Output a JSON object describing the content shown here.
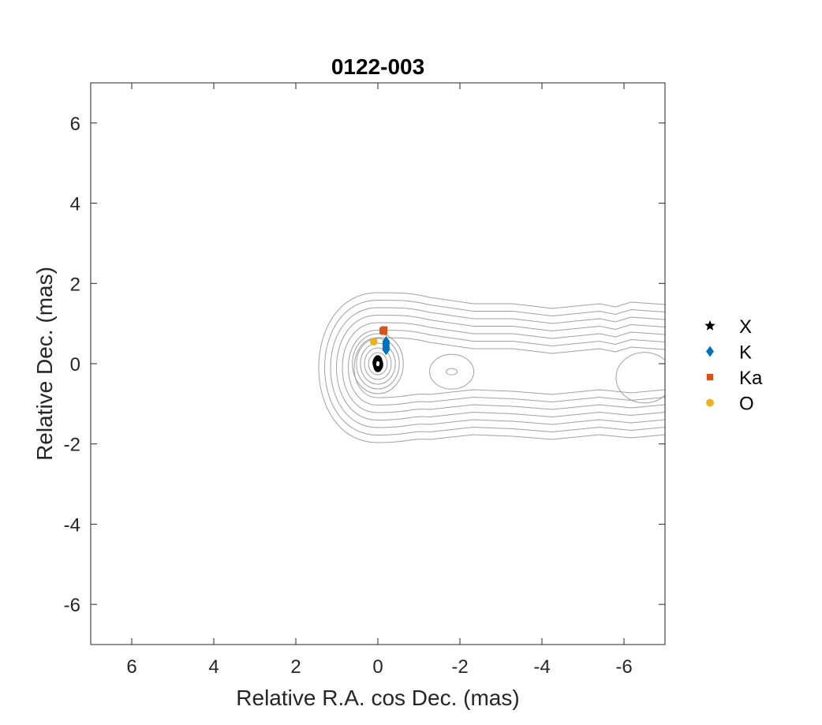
{
  "chart_data": {
    "type": "scatter",
    "title": "0122-003",
    "xlabel": "Relative R.A. cos Dec. (mas)",
    "ylabel": "Relative Dec. (mas)",
    "xlim": [
      7,
      -7
    ],
    "ylim": [
      -7,
      7
    ],
    "x_reversed": true,
    "x_ticks": [
      6,
      4,
      2,
      0,
      -2,
      -4,
      -6
    ],
    "y_ticks": [
      -6,
      -4,
      -2,
      0,
      2,
      4,
      6
    ],
    "x_tick_labels": [
      "6",
      "4",
      "2",
      "0",
      "-2",
      "-4",
      "-6"
    ],
    "y_tick_labels": [
      "-6",
      "-4",
      "-2",
      "0",
      "2",
      "4",
      "6"
    ],
    "grid": false,
    "legend_placement": "outside-right",
    "series": [
      {
        "name": "X",
        "marker": "star",
        "color": "#000000",
        "points": [
          [
            0.0,
            0.0
          ],
          [
            0.0,
            0.05
          ],
          [
            0.0,
            -0.05
          ],
          [
            0.02,
            0.02
          ],
          [
            -0.02,
            -0.02
          ]
        ]
      },
      {
        "name": "K",
        "marker": "diamond",
        "color": "#0072BD",
        "points": [
          [
            -0.2,
            0.35
          ],
          [
            -0.2,
            0.4
          ],
          [
            -0.2,
            0.45
          ],
          [
            -0.2,
            0.5
          ],
          [
            -0.2,
            0.55
          ]
        ]
      },
      {
        "name": "Ka",
        "marker": "square",
        "color": "#D95319",
        "points": [
          [
            -0.15,
            0.8
          ],
          [
            -0.15,
            0.85
          ],
          [
            -0.12,
            0.82
          ]
        ]
      },
      {
        "name": "O",
        "marker": "circle",
        "color": "#EDB120",
        "points": [
          [
            0.1,
            0.55
          ]
        ]
      }
    ],
    "contours": {
      "color": "#a0a0a0",
      "core_center": [
        0,
        0
      ],
      "feature_center": [
        -1.8,
        -0.2
      ],
      "far_blob_center": [
        -6.5,
        -0.35
      ]
    }
  }
}
